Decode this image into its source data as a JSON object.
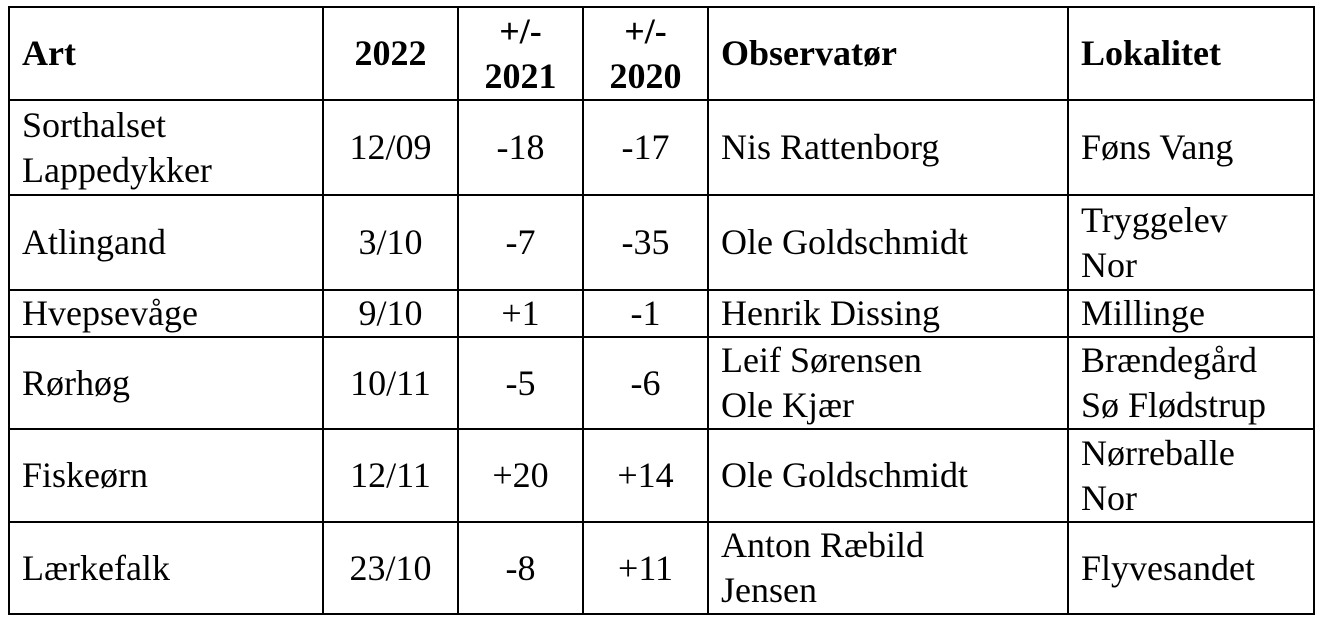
{
  "table": {
    "header": [
      "Art",
      "2022",
      "+/-\n2021",
      "+/-\n2020",
      "Observatør",
      "Lokalitet"
    ],
    "rows": [
      [
        "Sorthalset\nLappedykker",
        "12/09",
        "-18",
        "-17",
        "Nis Rattenborg",
        "Føns Vang"
      ],
      [
        "Atlingand",
        "3/10",
        "-7",
        "-35",
        "Ole Goldschmidt",
        "Tryggelev\nNor"
      ],
      [
        "Hvepsevåge",
        "9/10",
        "+1",
        "-1",
        "Henrik Dissing",
        "Millinge"
      ],
      [
        "Rørhøg",
        "10/11",
        "-5",
        "-6",
        "Leif Sørensen\nOle Kjær",
        "Brændegård\nSø Flødstrup"
      ],
      [
        "Fiskeørn",
        "12/11",
        "+20",
        "+14",
        "Ole Goldschmidt",
        "Nørreballe\nNor"
      ],
      [
        "Lærkefalk",
        "23/10",
        "-8",
        "+11",
        "Anton Ræbild\nJensen",
        "Flyvesandet"
      ]
    ]
  }
}
